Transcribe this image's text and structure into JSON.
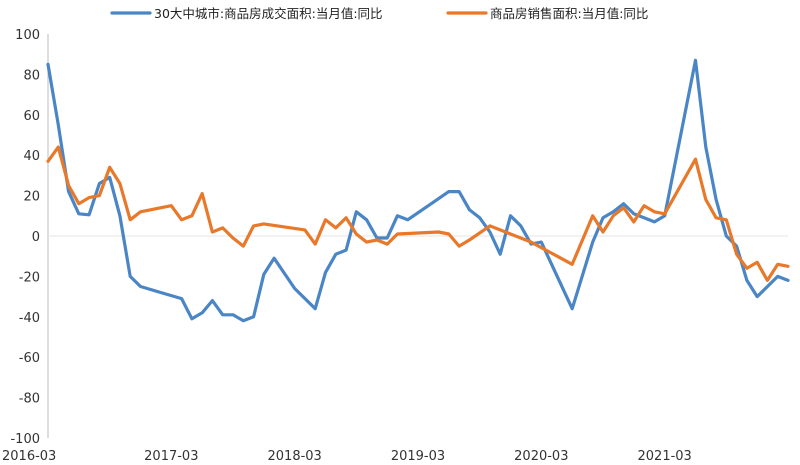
{
  "chart_data": {
    "type": "line",
    "title": "",
    "xlabel": "",
    "ylabel": "",
    "ylim": [
      -100,
      100
    ],
    "y_ticks": [
      100,
      80,
      60,
      40,
      20,
      0,
      -20,
      -40,
      -60,
      -80,
      -100
    ],
    "x_ticks": [
      "2016-03",
      "2017-03",
      "2018-03",
      "2019-03",
      "2020-03",
      "2021-03"
    ],
    "grid": false,
    "legend_position": "top",
    "x_start": "2016-03",
    "series": [
      {
        "name": "30大中城市:商品房成交面积:当月值:同比",
        "color": "#4a86c6",
        "points": [
          [
            "2016-03",
            85
          ],
          [
            "2016-04",
            55
          ],
          [
            "2016-05",
            22
          ],
          [
            "2016-06",
            11
          ],
          [
            "2016-07",
            10.5
          ],
          [
            "2016-08",
            26
          ],
          [
            "2016-09",
            29
          ],
          [
            "2016-10",
            10
          ],
          [
            "2016-11",
            -20
          ],
          [
            "2016-12",
            -25
          ],
          [
            "2017-02",
            -28
          ],
          [
            "2017-04",
            -31
          ],
          [
            "2017-05",
            -41
          ],
          [
            "2017-06",
            -38
          ],
          [
            "2017-07",
            -32
          ],
          [
            "2017-08",
            -39
          ],
          [
            "2017-09",
            -39
          ],
          [
            "2017-10",
            -42
          ],
          [
            "2017-11",
            -40
          ],
          [
            "2017-12",
            -19
          ],
          [
            "2018-01",
            -11
          ],
          [
            "2018-03",
            -26
          ],
          [
            "2018-05",
            -36
          ],
          [
            "2018-06",
            -18
          ],
          [
            "2018-07",
            -9
          ],
          [
            "2018-08",
            -7
          ],
          [
            "2018-09",
            12
          ],
          [
            "2018-10",
            8
          ],
          [
            "2018-11",
            -1
          ],
          [
            "2018-12",
            -1
          ],
          [
            "2019-01",
            10
          ],
          [
            "2019-02",
            8
          ],
          [
            "2019-04",
            15
          ],
          [
            "2019-06",
            22
          ],
          [
            "2019-07",
            22
          ],
          [
            "2019-08",
            13
          ],
          [
            "2019-09",
            9
          ],
          [
            "2019-10",
            2
          ],
          [
            "2019-11",
            -9
          ],
          [
            "2019-12",
            10
          ],
          [
            "2020-01",
            5
          ],
          [
            "2020-02",
            -4
          ],
          [
            "2020-03",
            -3
          ],
          [
            "2020-06",
            -36
          ],
          [
            "2020-08",
            -3
          ],
          [
            "2020-09",
            9
          ],
          [
            "2020-10",
            12
          ],
          [
            "2020-11",
            16
          ],
          [
            "2020-12",
            11
          ],
          [
            "2021-01",
            9
          ],
          [
            "2021-02",
            7
          ],
          [
            "2021-03",
            10
          ],
          [
            "2021-06",
            87
          ],
          [
            "2021-07",
            44
          ],
          [
            "2021-08",
            18
          ],
          [
            "2021-09",
            0
          ],
          [
            "2021-10",
            -5
          ],
          [
            "2021-11",
            -22
          ],
          [
            "2021-12",
            -30
          ],
          [
            "2022-02",
            -20
          ],
          [
            "2022-03",
            -22
          ]
        ]
      },
      {
        "name": "商品房销售面积:当月值:同比",
        "color": "#e8782a",
        "points": [
          [
            "2016-03",
            37
          ],
          [
            "2016-04",
            44
          ],
          [
            "2016-05",
            25
          ],
          [
            "2016-06",
            16
          ],
          [
            "2016-07",
            19
          ],
          [
            "2016-08",
            20
          ],
          [
            "2016-09",
            34
          ],
          [
            "2016-10",
            26
          ],
          [
            "2016-11",
            8
          ],
          [
            "2016-12",
            12
          ],
          [
            "2017-02",
            14
          ],
          [
            "2017-03",
            15
          ],
          [
            "2017-04",
            8
          ],
          [
            "2017-05",
            10
          ],
          [
            "2017-06",
            21
          ],
          [
            "2017-07",
            2
          ],
          [
            "2017-08",
            4
          ],
          [
            "2017-09",
            -1
          ],
          [
            "2017-10",
            -5
          ],
          [
            "2017-11",
            5
          ],
          [
            "2017-12",
            6
          ],
          [
            "2018-04",
            3
          ],
          [
            "2018-05",
            -4
          ],
          [
            "2018-06",
            8
          ],
          [
            "2018-07",
            4
          ],
          [
            "2018-08",
            9
          ],
          [
            "2018-09",
            1
          ],
          [
            "2018-10",
            -3
          ],
          [
            "2018-11",
            -2
          ],
          [
            "2018-12",
            -4
          ],
          [
            "2019-01",
            1
          ],
          [
            "2019-05",
            2
          ],
          [
            "2019-06",
            1
          ],
          [
            "2019-07",
            -5
          ],
          [
            "2019-08",
            -2
          ],
          [
            "2019-10",
            5
          ],
          [
            "2019-11",
            3
          ],
          [
            "2019-12",
            1
          ],
          [
            "2020-01",
            -1
          ],
          [
            "2020-02",
            -3
          ],
          [
            "2020-06",
            -14
          ],
          [
            "2020-08",
            10
          ],
          [
            "2020-09",
            2
          ],
          [
            "2020-10",
            10
          ],
          [
            "2020-11",
            14
          ],
          [
            "2020-12",
            7
          ],
          [
            "2021-01",
            15
          ],
          [
            "2021-02",
            12
          ],
          [
            "2021-03",
            11
          ],
          [
            "2021-06",
            38
          ],
          [
            "2021-07",
            18
          ],
          [
            "2021-08",
            9
          ],
          [
            "2021-09",
            8
          ],
          [
            "2021-10",
            -9
          ],
          [
            "2021-11",
            -16
          ],
          [
            "2021-12",
            -13
          ],
          [
            "2022-01",
            -22
          ],
          [
            "2022-02",
            -14
          ],
          [
            "2022-03",
            -15
          ]
        ]
      }
    ]
  }
}
